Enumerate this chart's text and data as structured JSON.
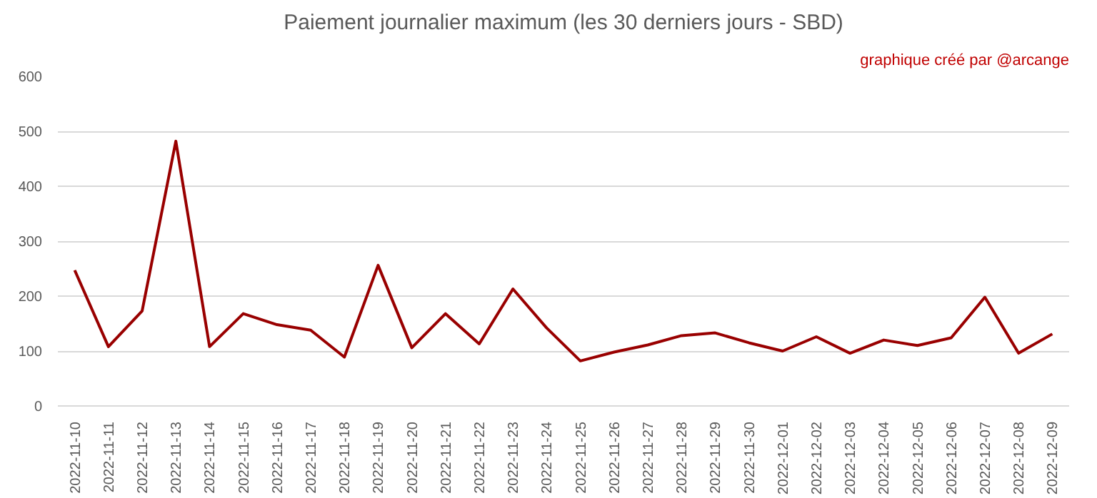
{
  "chart_data": {
    "type": "line",
    "title": "Paiement journalier maximum (les 30 derniers jours - SBD)",
    "annotations": [
      "graphique créé par @arcange"
    ],
    "categories": [
      "2022-11-10",
      "2022-11-11",
      "2022-11-12",
      "2022-11-13",
      "2022-11-14",
      "2022-11-15",
      "2022-11-16",
      "2022-11-17",
      "2022-11-18",
      "2022-11-19",
      "2022-11-20",
      "2022-11-21",
      "2022-11-22",
      "2022-11-23",
      "2022-11-24",
      "2022-11-25",
      "2022-11-26",
      "2022-11-27",
      "2022-11-28",
      "2022-11-29",
      "2022-11-30",
      "2022-12-01",
      "2022-12-02",
      "2022-12-03",
      "2022-12-04",
      "2022-12-05",
      "2022-12-06",
      "2022-12-07",
      "2022-12-08",
      "2022-12-09"
    ],
    "series": [
      {
        "color": "#990000",
        "values": [
          247,
          108,
          173,
          482,
          108,
          168,
          148,
          138,
          89,
          256,
          106,
          168,
          113,
          213,
          142,
          82,
          98,
          111,
          128,
          133,
          115,
          100,
          126,
          96,
          120,
          110,
          124,
          198,
          96,
          131
        ]
      }
    ],
    "ylim": [
      0,
      600
    ],
    "yticks": [
      0,
      100,
      200,
      300,
      400,
      500,
      600
    ],
    "grid": "y",
    "line_style": "solid"
  }
}
